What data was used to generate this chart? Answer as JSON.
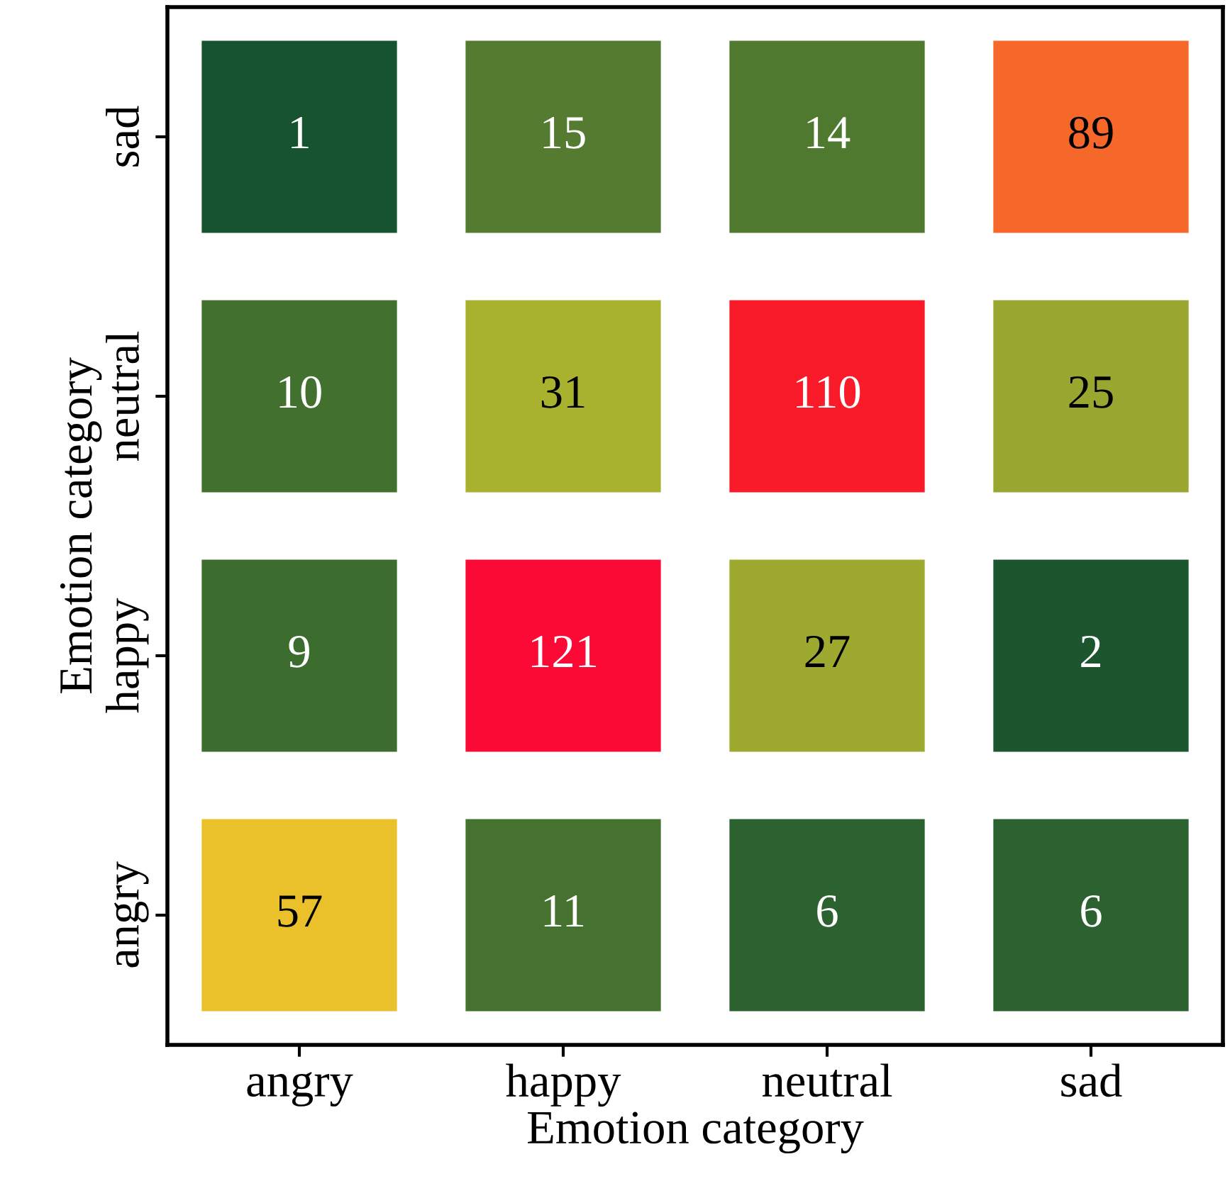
{
  "chart_data": {
    "type": "heatmap",
    "xlabel": "Emotion category",
    "ylabel": "Emotion category",
    "categories": [
      "angry",
      "happy",
      "neutral",
      "sad"
    ],
    "y_categories": [
      "sad",
      "neutral",
      "happy",
      "angry"
    ],
    "cells": [
      [
        1,
        15,
        14,
        89
      ],
      [
        10,
        31,
        110,
        25
      ],
      [
        9,
        121,
        27,
        2
      ],
      [
        57,
        11,
        6,
        6
      ]
    ],
    "data_labels": true,
    "grid": false
  }
}
